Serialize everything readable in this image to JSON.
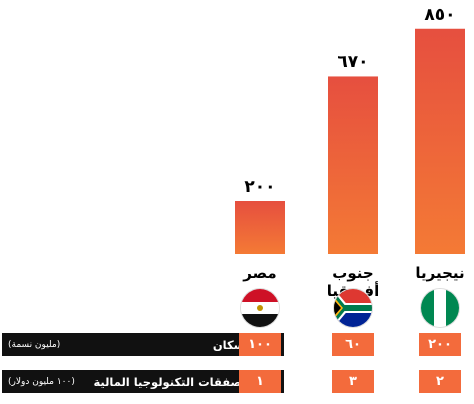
{
  "chart_data": {
    "type": "bar",
    "categories": [
      "مصر",
      "جنوب أفريقيا",
      "نيجيريا"
    ],
    "values": [
      200,
      670,
      850
    ],
    "value_labels": [
      "٢٠٠",
      "٦٧٠",
      "٨٥٠"
    ],
    "colors": {
      "bar_top": "#e64f3f",
      "bar_bottom": "#f47a35"
    },
    "flags": [
      "egypt-flag-icon",
      "south-africa-flag-icon",
      "nigeria-flag-icon"
    ],
    "table": [
      {
        "label": "عدد السكان",
        "unit": "(مليون نسمة)",
        "values": [
          "١٠٠",
          "٦٠",
          "٢٠٠"
        ]
      },
      {
        "label": "أضخم صفقات التكنولوجيا المالية",
        "unit": "(١٠٠ مليون دولار)",
        "values": [
          "١",
          "٣",
          "٢"
        ]
      }
    ]
  }
}
